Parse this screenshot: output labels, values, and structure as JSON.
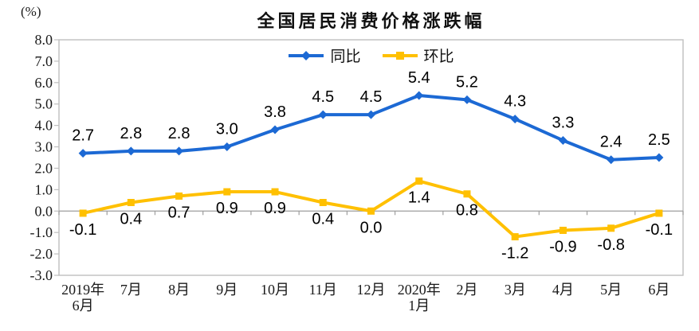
{
  "chart_data": {
    "type": "line",
    "title": "全国居民消费价格涨跌幅",
    "unit_label": "(%)",
    "categories": [
      "2019年\n6月",
      "7月",
      "8月",
      "9月",
      "10月",
      "11月",
      "12月",
      "2020年\n1月",
      "2月",
      "3月",
      "4月",
      "5月",
      "6月"
    ],
    "series": [
      {
        "id": "yoy",
        "name": "同比",
        "color": "#1C69D4",
        "marker": "diamond",
        "label_position": "above",
        "values": [
          2.7,
          2.8,
          2.8,
          3.0,
          3.8,
          4.5,
          4.5,
          5.4,
          5.2,
          4.3,
          3.3,
          2.4,
          2.5
        ]
      },
      {
        "id": "mom",
        "name": "环比",
        "color": "#FFC000",
        "marker": "square",
        "label_position": "below",
        "values": [
          -0.1,
          0.4,
          0.7,
          0.9,
          0.9,
          0.4,
          0.0,
          1.4,
          0.8,
          -1.2,
          -0.9,
          -0.8,
          -0.1
        ]
      }
    ],
    "ylim": [
      -3.0,
      8.0
    ],
    "y_tick_step": 1.0,
    "grid": "zero-line-only",
    "legend_position": "top-center",
    "frame_color": "#BFBFBF",
    "zero_line_color": "#9E9E9E",
    "text_color": "#1A1A1A",
    "label_color": "#000000"
  }
}
